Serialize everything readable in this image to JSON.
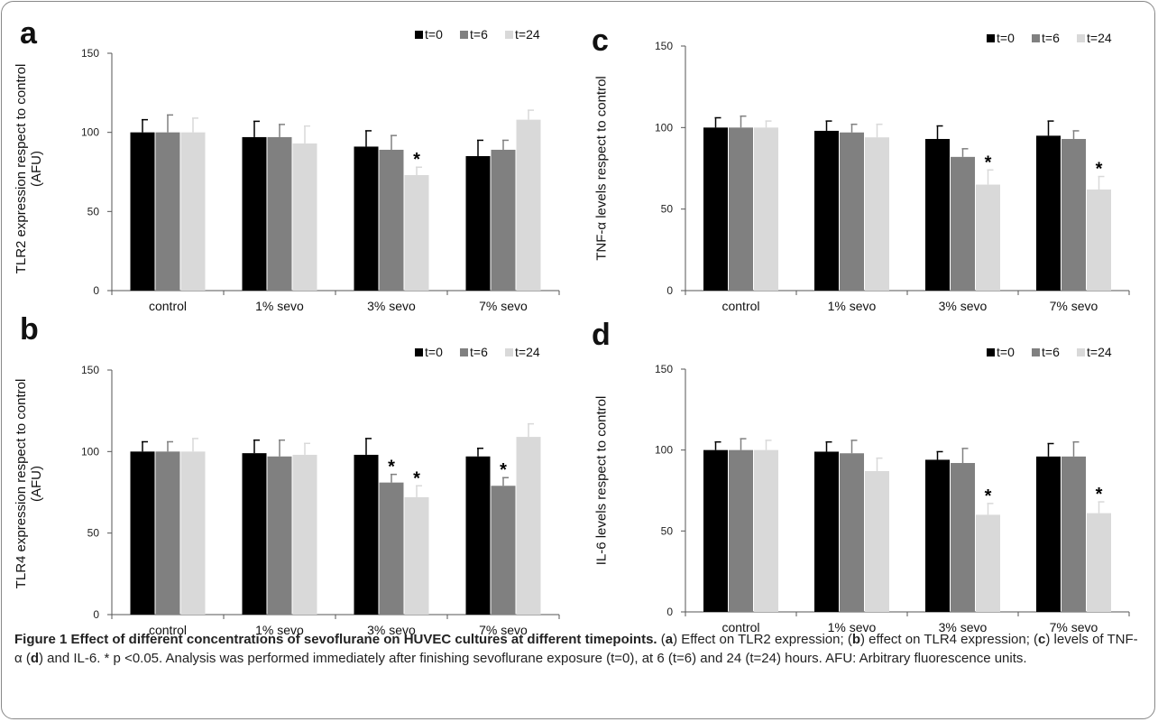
{
  "chart_data": [
    {
      "id": "a",
      "type": "bar",
      "panel_letter": "a",
      "ylabel_lines": [
        "TLR2 expression respect to control",
        "(AFU)"
      ],
      "categories": [
        "control",
        "1% sevo",
        "3% sevo",
        "7% sevo"
      ],
      "ylim": [
        0,
        150
      ],
      "yticks": [
        0,
        50,
        100,
        150
      ],
      "series": [
        {
          "name": "t=0",
          "color": "#000000",
          "values": [
            100,
            97,
            91,
            85
          ],
          "errors": [
            8,
            10,
            10,
            10
          ],
          "significant": [
            false,
            false,
            false,
            false
          ]
        },
        {
          "name": "t=6",
          "color": "#808080",
          "values": [
            100,
            97,
            89,
            89
          ],
          "errors": [
            11,
            8,
            9,
            6
          ],
          "significant": [
            false,
            false,
            false,
            false
          ]
        },
        {
          "name": "t=24",
          "color": "#d9d9d9",
          "values": [
            100,
            93,
            73,
            108
          ],
          "errors": [
            9,
            11,
            5,
            6
          ],
          "significant": [
            false,
            false,
            true,
            false
          ]
        }
      ],
      "legend_position": "top-right",
      "grid": false
    },
    {
      "id": "b",
      "type": "bar",
      "panel_letter": "b",
      "ylabel_lines": [
        "TLR4 expression respect to control",
        "(AFU)"
      ],
      "categories": [
        "control",
        "1% sevo",
        "3% sevo",
        "7% sevo"
      ],
      "ylim": [
        0,
        150
      ],
      "yticks": [
        0,
        50,
        100,
        150
      ],
      "series": [
        {
          "name": "t=0",
          "color": "#000000",
          "values": [
            100,
            99,
            98,
            97
          ],
          "errors": [
            6,
            8,
            10,
            5
          ],
          "significant": [
            false,
            false,
            false,
            false
          ]
        },
        {
          "name": "t=6",
          "color": "#808080",
          "values": [
            100,
            97,
            81,
            79
          ],
          "errors": [
            6,
            10,
            5,
            5
          ],
          "significant": [
            false,
            false,
            true,
            true
          ]
        },
        {
          "name": "t=24",
          "color": "#d9d9d9",
          "values": [
            100,
            98,
            72,
            109
          ],
          "errors": [
            8,
            7,
            7,
            8
          ],
          "significant": [
            false,
            false,
            true,
            false
          ]
        }
      ],
      "legend_position": "top-right",
      "grid": false
    },
    {
      "id": "c",
      "type": "bar",
      "panel_letter": "c",
      "ylabel_lines": [
        "TNF-α levels respect to control"
      ],
      "categories": [
        "control",
        "1% sevo",
        "3% sevo",
        "7% sevo"
      ],
      "ylim": [
        0,
        150
      ],
      "yticks": [
        0,
        50,
        100,
        150
      ],
      "series": [
        {
          "name": "t=0",
          "color": "#000000",
          "values": [
            100,
            98,
            93,
            95
          ],
          "errors": [
            6,
            6,
            8,
            9
          ],
          "significant": [
            false,
            false,
            false,
            false
          ]
        },
        {
          "name": "t=6",
          "color": "#808080",
          "values": [
            100,
            97,
            82,
            93
          ],
          "errors": [
            7,
            5,
            5,
            5
          ],
          "significant": [
            false,
            false,
            false,
            false
          ]
        },
        {
          "name": "t=24",
          "color": "#d9d9d9",
          "values": [
            100,
            94,
            65,
            62
          ],
          "errors": [
            4,
            8,
            9,
            8
          ],
          "significant": [
            false,
            false,
            true,
            true
          ]
        }
      ],
      "legend_position": "top-right",
      "grid": false
    },
    {
      "id": "d",
      "type": "bar",
      "panel_letter": "d",
      "ylabel_lines": [
        "IL-6 levels respect to control"
      ],
      "categories": [
        "control",
        "1% sevo",
        "3% sevo",
        "7% sevo"
      ],
      "ylim": [
        0,
        150
      ],
      "yticks": [
        0,
        50,
        100,
        150
      ],
      "series": [
        {
          "name": "t=0",
          "color": "#000000",
          "values": [
            100,
            99,
            94,
            96
          ],
          "errors": [
            5,
            6,
            5,
            8
          ],
          "significant": [
            false,
            false,
            false,
            false
          ]
        },
        {
          "name": "t=6",
          "color": "#808080",
          "values": [
            100,
            98,
            92,
            96
          ],
          "errors": [
            7,
            8,
            9,
            9
          ],
          "significant": [
            false,
            false,
            false,
            false
          ]
        },
        {
          "name": "t=24",
          "color": "#d9d9d9",
          "values": [
            100,
            87,
            60,
            61
          ],
          "errors": [
            6,
            8,
            7,
            7
          ],
          "significant": [
            false,
            false,
            true,
            true
          ]
        }
      ],
      "legend_position": "top-right",
      "grid": false
    }
  ],
  "caption": {
    "title": "Figure 1 Effect of different concentrations of sevoflurane on HUVEC cultures at different timepoints.",
    "parts": [
      {
        "t": " (",
        "b": false
      },
      {
        "t": "a",
        "b": true
      },
      {
        "t": ") Effect on TLR2 expression; (",
        "b": false
      },
      {
        "t": "b",
        "b": true
      },
      {
        "t": ") effect on TLR4 expression; (",
        "b": false
      },
      {
        "t": "c",
        "b": true
      },
      {
        "t": ") levels of TNF-α (",
        "b": false
      },
      {
        "t": "d",
        "b": true
      },
      {
        "t": ") and IL-6. * p <0.05. Analysis was performed immediately after finishing sevoflurane exposure (t=0), at 6 (t=6) and 24 (t=24) hours. AFU: Arbitrary fluorescence units.",
        "b": false
      }
    ]
  }
}
